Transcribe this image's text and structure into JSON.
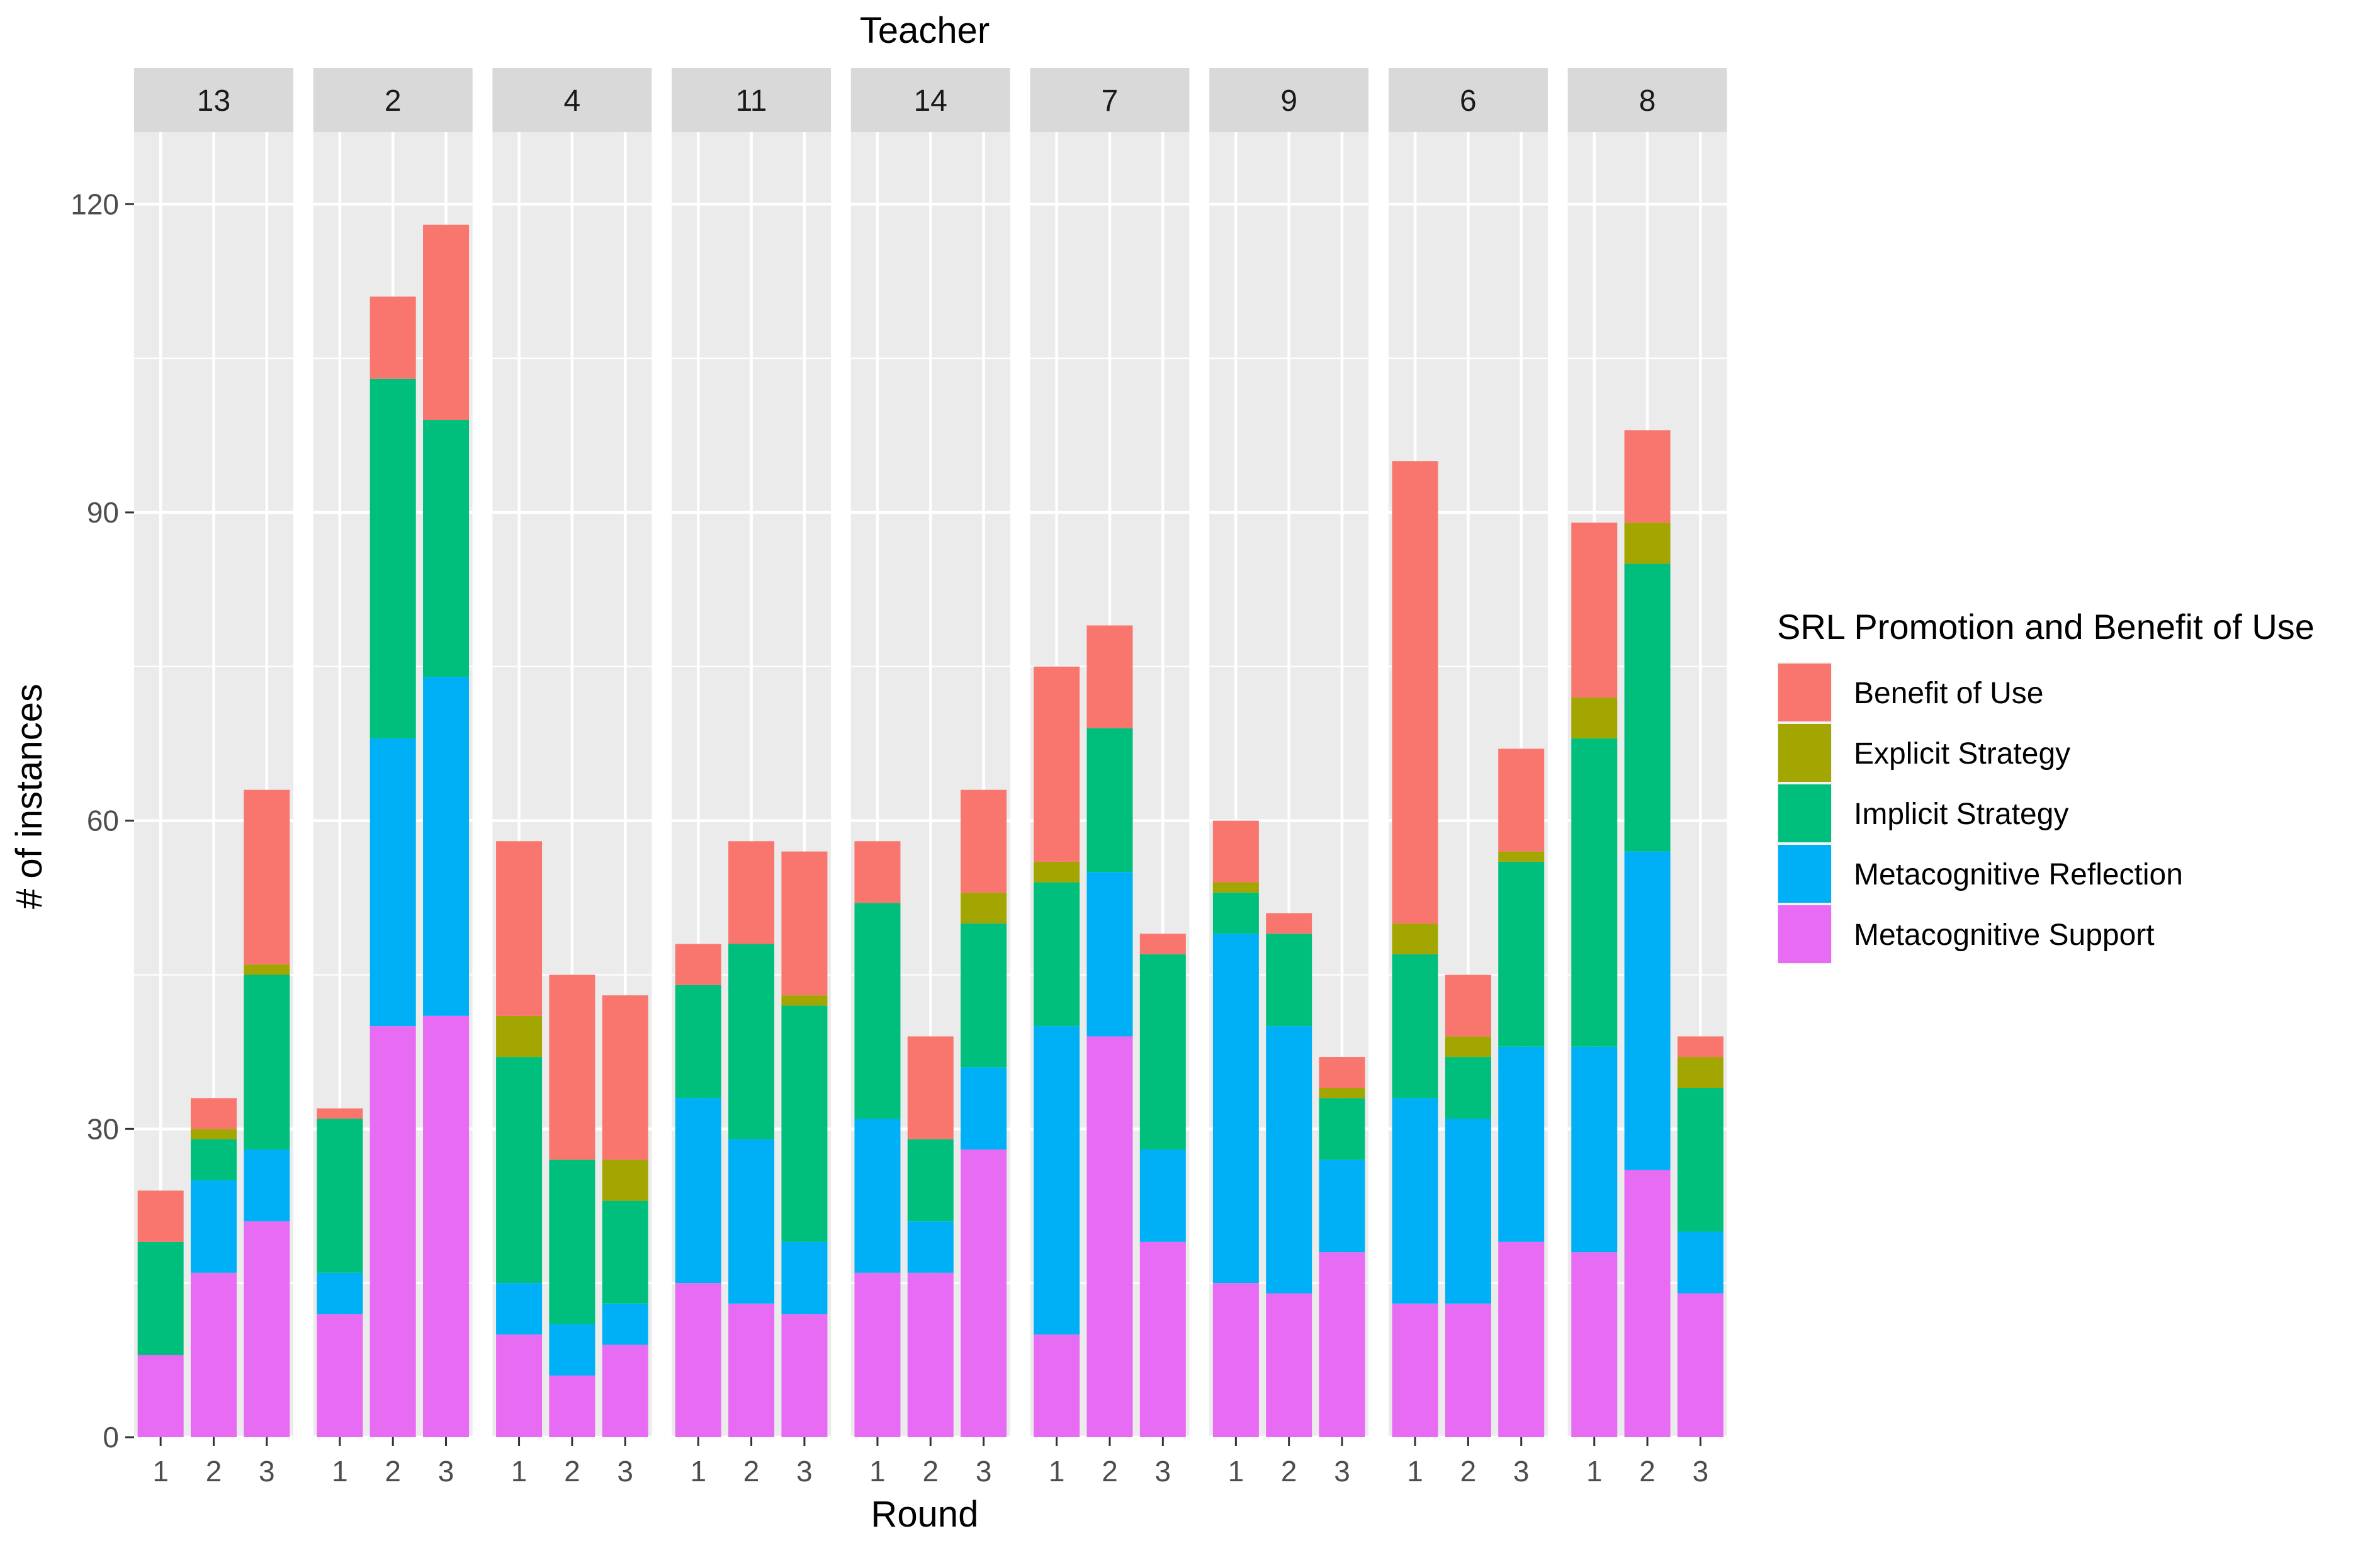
{
  "chart_data": {
    "type": "bar",
    "stacked": true,
    "faceted": true,
    "title": "Teacher",
    "xlabel": "Round",
    "ylabel": "# of instances",
    "ylim": [
      0,
      127
    ],
    "yticks": [
      0,
      30,
      60,
      90,
      120
    ],
    "categories": [
      "1",
      "2",
      "3"
    ],
    "facets": [
      "13",
      "2",
      "4",
      "11",
      "14",
      "7",
      "9",
      "6",
      "8"
    ],
    "legend": {
      "title": "SRL Promotion and Benefit of Use",
      "position": "right",
      "entries": [
        {
          "name": "Benefit of Use",
          "color": "#F8766D"
        },
        {
          "name": "Explicit Strategy",
          "color": "#A3A500"
        },
        {
          "name": "Implicit Strategy",
          "color": "#00BF7D"
        },
        {
          "name": "Metacognitive Reflection",
          "color": "#00B0F6"
        },
        {
          "name": "Metacognitive Support",
          "color": "#E76BF3"
        }
      ]
    },
    "stack_order_bottom_to_top": [
      "Metacognitive Support",
      "Metacognitive Reflection",
      "Implicit Strategy",
      "Explicit Strategy",
      "Benefit of Use"
    ],
    "data": {
      "13": [
        {
          "round": "1",
          "Metacognitive Support": 8,
          "Metacognitive Reflection": 0,
          "Implicit Strategy": 11,
          "Explicit Strategy": 0,
          "Benefit of Use": 5
        },
        {
          "round": "2",
          "Metacognitive Support": 16,
          "Metacognitive Reflection": 9,
          "Implicit Strategy": 4,
          "Explicit Strategy": 1,
          "Benefit of Use": 3
        },
        {
          "round": "3",
          "Metacognitive Support": 21,
          "Metacognitive Reflection": 7,
          "Implicit Strategy": 17,
          "Explicit Strategy": 1,
          "Benefit of Use": 17
        }
      ],
      "2": [
        {
          "round": "1",
          "Metacognitive Support": 12,
          "Metacognitive Reflection": 4,
          "Implicit Strategy": 15,
          "Explicit Strategy": 0,
          "Benefit of Use": 1
        },
        {
          "round": "2",
          "Metacognitive Support": 40,
          "Metacognitive Reflection": 28,
          "Implicit Strategy": 35,
          "Explicit Strategy": 0,
          "Benefit of Use": 8
        },
        {
          "round": "3",
          "Metacognitive Support": 41,
          "Metacognitive Reflection": 33,
          "Implicit Strategy": 25,
          "Explicit Strategy": 0,
          "Benefit of Use": 19
        }
      ],
      "4": [
        {
          "round": "1",
          "Metacognitive Support": 10,
          "Metacognitive Reflection": 5,
          "Implicit Strategy": 22,
          "Explicit Strategy": 4,
          "Benefit of Use": 17
        },
        {
          "round": "2",
          "Metacognitive Support": 6,
          "Metacognitive Reflection": 5,
          "Implicit Strategy": 16,
          "Explicit Strategy": 0,
          "Benefit of Use": 18
        },
        {
          "round": "3",
          "Metacognitive Support": 9,
          "Metacognitive Reflection": 4,
          "Implicit Strategy": 10,
          "Explicit Strategy": 4,
          "Benefit of Use": 16
        }
      ],
      "11": [
        {
          "round": "1",
          "Metacognitive Support": 15,
          "Metacognitive Reflection": 18,
          "Implicit Strategy": 11,
          "Explicit Strategy": 0,
          "Benefit of Use": 4
        },
        {
          "round": "2",
          "Metacognitive Support": 13,
          "Metacognitive Reflection": 16,
          "Implicit Strategy": 19,
          "Explicit Strategy": 0,
          "Benefit of Use": 10
        },
        {
          "round": "3",
          "Metacognitive Support": 12,
          "Metacognitive Reflection": 7,
          "Implicit Strategy": 23,
          "Explicit Strategy": 1,
          "Benefit of Use": 14
        }
      ],
      "14": [
        {
          "round": "1",
          "Metacognitive Support": 16,
          "Metacognitive Reflection": 15,
          "Implicit Strategy": 21,
          "Explicit Strategy": 0,
          "Benefit of Use": 6
        },
        {
          "round": "2",
          "Metacognitive Support": 16,
          "Metacognitive Reflection": 5,
          "Implicit Strategy": 8,
          "Explicit Strategy": 0,
          "Benefit of Use": 10
        },
        {
          "round": "3",
          "Metacognitive Support": 28,
          "Metacognitive Reflection": 8,
          "Implicit Strategy": 14,
          "Explicit Strategy": 3,
          "Benefit of Use": 10
        }
      ],
      "7": [
        {
          "round": "1",
          "Metacognitive Support": 10,
          "Metacognitive Reflection": 30,
          "Implicit Strategy": 14,
          "Explicit Strategy": 2,
          "Benefit of Use": 19
        },
        {
          "round": "2",
          "Metacognitive Support": 39,
          "Metacognitive Reflection": 16,
          "Implicit Strategy": 14,
          "Explicit Strategy": 0,
          "Benefit of Use": 10
        },
        {
          "round": "3",
          "Metacognitive Support": 19,
          "Metacognitive Reflection": 9,
          "Implicit Strategy": 19,
          "Explicit Strategy": 0,
          "Benefit of Use": 2
        }
      ],
      "9": [
        {
          "round": "1",
          "Metacognitive Support": 15,
          "Metacognitive Reflection": 34,
          "Implicit Strategy": 4,
          "Explicit Strategy": 1,
          "Benefit of Use": 6
        },
        {
          "round": "2",
          "Metacognitive Support": 14,
          "Metacognitive Reflection": 26,
          "Implicit Strategy": 9,
          "Explicit Strategy": 0,
          "Benefit of Use": 2
        },
        {
          "round": "3",
          "Metacognitive Support": 18,
          "Metacognitive Reflection": 9,
          "Implicit Strategy": 6,
          "Explicit Strategy": 1,
          "Benefit of Use": 3
        }
      ],
      "6": [
        {
          "round": "1",
          "Metacognitive Support": 13,
          "Metacognitive Reflection": 20,
          "Implicit Strategy": 14,
          "Explicit Strategy": 3,
          "Benefit of Use": 45
        },
        {
          "round": "2",
          "Metacognitive Support": 13,
          "Metacognitive Reflection": 18,
          "Implicit Strategy": 6,
          "Explicit Strategy": 2,
          "Benefit of Use": 6
        },
        {
          "round": "3",
          "Metacognitive Support": 19,
          "Metacognitive Reflection": 19,
          "Implicit Strategy": 18,
          "Explicit Strategy": 1,
          "Benefit of Use": 10
        }
      ],
      "8": [
        {
          "round": "1",
          "Metacognitive Support": 18,
          "Metacognitive Reflection": 20,
          "Implicit Strategy": 30,
          "Explicit Strategy": 4,
          "Benefit of Use": 17
        },
        {
          "round": "2",
          "Metacognitive Support": 26,
          "Metacognitive Reflection": 31,
          "Implicit Strategy": 28,
          "Explicit Strategy": 4,
          "Benefit of Use": 9
        },
        {
          "round": "3",
          "Metacognitive Support": 14,
          "Metacognitive Reflection": 6,
          "Implicit Strategy": 14,
          "Explicit Strategy": 3,
          "Benefit of Use": 2
        }
      ]
    }
  }
}
